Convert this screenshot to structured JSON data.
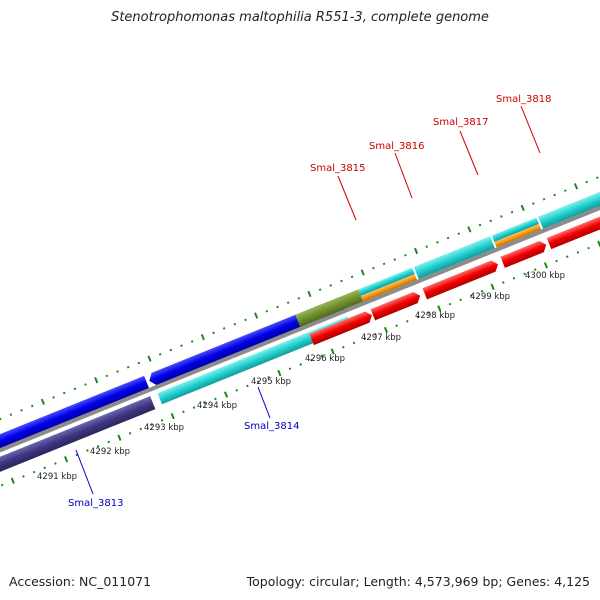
{
  "title": "Stenotrophomonas maltophilia R551-3, complete genome",
  "footer": {
    "accession": "Accession: NC_011071",
    "summary": "Topology: circular; Length: 4,573,969 bp; Genes: 4,125"
  },
  "ticks": [
    "4291 kbp",
    "4292 kbp",
    "4293 kbp",
    "4294 kbp",
    "4295 kbp",
    "4296 kbp",
    "4297 kbp",
    "4298 kbp",
    "4299 kbp",
    "4300 kbp"
  ],
  "genes": {
    "forward": [
      "Smal_3815",
      "Smal_3816",
      "Smal_3817",
      "Smal_3818"
    ],
    "reverse": [
      "Smal_3813",
      "Smal_3814"
    ]
  },
  "colors": {
    "forward_label": "#cc0000",
    "reverse_label": "#0000bb",
    "tick": "#1a8a1a",
    "backbone": "#8c8c8c"
  }
}
